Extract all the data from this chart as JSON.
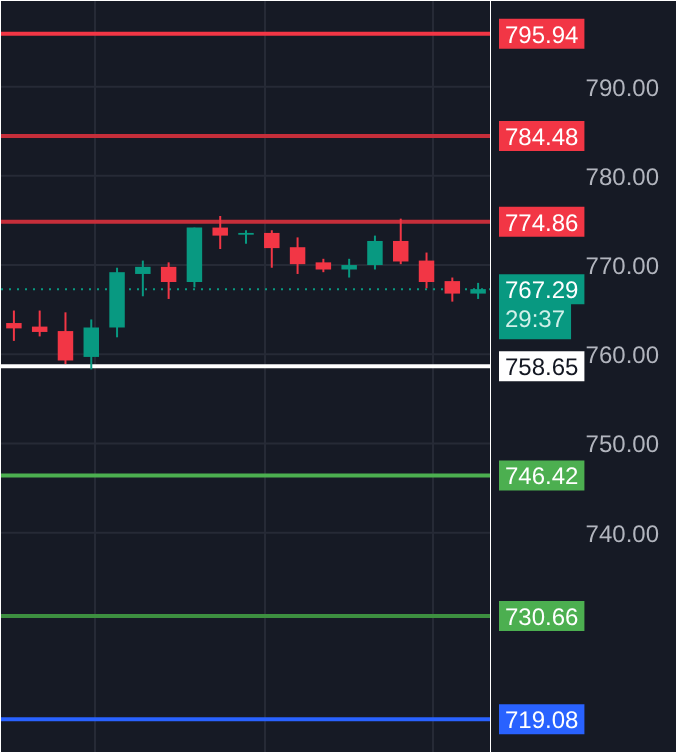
{
  "chart_data": {
    "type": "candlestick",
    "categories": [
      null,
      null,
      null,
      null,
      null,
      null,
      null,
      null,
      null,
      null,
      null,
      null,
      null,
      null,
      null,
      null,
      null,
      null,
      null
    ],
    "ohlc": [
      [
        763.5,
        764.9,
        761.5,
        762.9
      ],
      [
        763.1,
        764.9,
        762.0,
        762.5
      ],
      [
        762.6,
        764.7,
        758.9,
        759.3
      ],
      [
        759.7,
        763.9,
        758.3,
        763.0
      ],
      [
        763.0,
        769.7,
        761.9,
        769.2
      ],
      [
        769.0,
        770.5,
        766.5,
        769.8
      ],
      [
        769.8,
        770.3,
        766.2,
        768.1
      ],
      [
        768.1,
        774.2,
        767.5,
        774.2
      ],
      [
        774.2,
        775.5,
        771.8,
        773.3
      ],
      [
        773.4,
        773.9,
        772.4,
        773.6
      ],
      [
        773.6,
        773.9,
        769.7,
        771.9
      ],
      [
        772.0,
        773.1,
        769.0,
        770.1
      ],
      [
        770.3,
        770.7,
        769.2,
        769.5
      ],
      [
        769.5,
        770.7,
        768.6,
        770.0
      ],
      [
        770.0,
        773.3,
        769.5,
        772.7
      ],
      [
        772.7,
        775.2,
        770.1,
        770.4
      ],
      [
        770.5,
        771.4,
        767.4,
        768.1
      ],
      [
        768.2,
        768.6,
        765.9,
        766.8
      ],
      [
        766.8,
        768.0,
        766.2,
        767.3
      ]
    ],
    "colors": [
      "#f23645",
      "#f23645",
      "#f23645",
      "#089981",
      "#089981",
      "#089981",
      "#f23645",
      "#089981",
      "#f23645",
      "#089981",
      "#f23645",
      "#f23645",
      "#f23645",
      "#089981",
      "#089981",
      "#f23645",
      "#f23645",
      "#f23645",
      "#089981"
    ],
    "ylim": [
      715.3,
      799.6
    ],
    "yticks": [
      {
        "value": 740,
        "label": "740.00"
      },
      {
        "value": 750,
        "label": "750.00"
      },
      {
        "value": 760,
        "label": "760.00"
      },
      {
        "value": 770,
        "label": "770.00"
      },
      {
        "value": 780,
        "label": "780.00"
      },
      {
        "value": 790,
        "label": "790.00"
      }
    ],
    "grid": true,
    "ref_lines": [
      {
        "axis": "y",
        "value": 795.94,
        "label": "795.94",
        "color": "#f23645"
      },
      {
        "axis": "y",
        "value": 784.48,
        "label": "784.48",
        "color": "#c62e3a"
      },
      {
        "axis": "y",
        "value": 774.86,
        "label": "774.86",
        "color": "#c62e3a"
      },
      {
        "axis": "y",
        "value": 767.29,
        "label": "767.29",
        "color": "#089981",
        "line_style": "dotted"
      },
      {
        "axis": "y",
        "value": 758.65,
        "label": "758.65",
        "color": "#ffffff"
      },
      {
        "axis": "y",
        "value": 746.42,
        "label": "746.42",
        "color": "#4caf50"
      },
      {
        "axis": "y",
        "value": 730.66,
        "label": "730.66",
        "color": "#3d8f40"
      },
      {
        "axis": "y",
        "value": 719.08,
        "label": "719.08",
        "color": "#2962ff"
      }
    ],
    "annotations": [
      "29:37"
    ]
  }
}
